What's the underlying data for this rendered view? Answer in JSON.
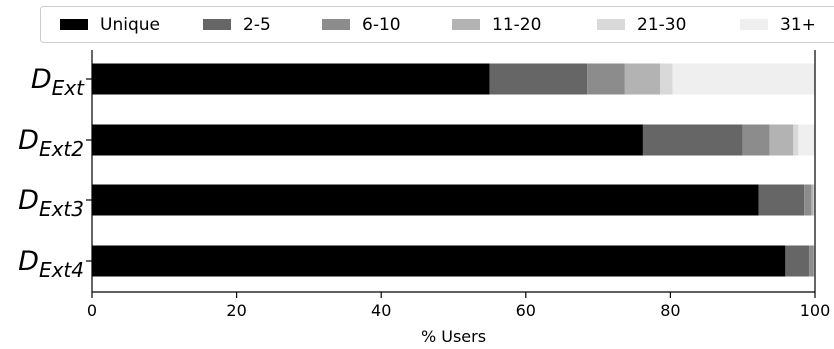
{
  "chart_data": {
    "type": "bar",
    "orientation": "horizontal",
    "stacked": true,
    "xlabel": "% Users",
    "xlim": [
      0,
      100
    ],
    "xticks": [
      0,
      20,
      40,
      60,
      80,
      100
    ],
    "grid": false,
    "legend": {
      "placement": "top",
      "entries": [
        "Unique",
        "2-5",
        "6-10",
        "11-20",
        "21-30",
        "31+"
      ]
    },
    "categories": [
      {
        "base": "D",
        "subscript": "Ext"
      },
      {
        "base": "D",
        "subscript": "Ext2"
      },
      {
        "base": "D",
        "subscript": "Ext3"
      },
      {
        "base": "D",
        "subscript": "Ext4"
      }
    ],
    "series": [
      {
        "name": "Unique",
        "color": "#000000",
        "values": [
          55.0,
          76.2,
          92.2,
          95.9
        ]
      },
      {
        "name": "2-5",
        "color": "#666666",
        "values": [
          13.5,
          13.8,
          6.3,
          3.3
        ]
      },
      {
        "name": "6-10",
        "color": "#8c8c8c",
        "values": [
          5.2,
          3.7,
          1.0,
          0.6
        ]
      },
      {
        "name": "11-20",
        "color": "#b3b3b3",
        "values": [
          4.9,
          3.3,
          0.3,
          0.1
        ]
      },
      {
        "name": "21-30",
        "color": "#d9d9d9",
        "values": [
          1.7,
          0.7,
          0.1,
          0.05
        ]
      },
      {
        "name": "31+",
        "color": "#efefef",
        "values": [
          19.7,
          2.3,
          0.1,
          0.05
        ]
      }
    ]
  }
}
